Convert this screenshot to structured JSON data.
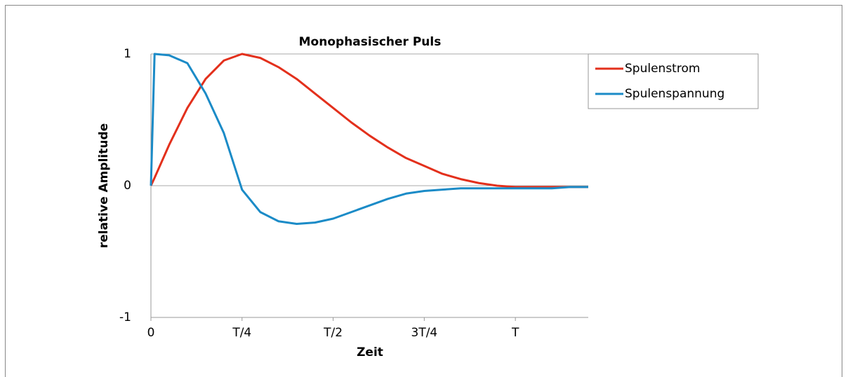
{
  "chart_data": {
    "type": "line",
    "title": "Monophasischer Puls",
    "xlabel": "Zeit",
    "ylabel": "relative Amplitude",
    "x": [
      0,
      0.01,
      0.05,
      0.1,
      0.15,
      0.2,
      0.25,
      0.3,
      0.35,
      0.4,
      0.45,
      0.5,
      0.55,
      0.6,
      0.65,
      0.7,
      0.75,
      0.8,
      0.85,
      0.9,
      0.95,
      1.0,
      1.05,
      1.1,
      1.15,
      1.2
    ],
    "series": [
      {
        "name": "Spulenstrom",
        "color": "#e3301c",
        "values": [
          0,
          0.06,
          0.31,
          0.59,
          0.81,
          0.95,
          1,
          0.97,
          0.9,
          0.81,
          0.7,
          0.59,
          0.48,
          0.38,
          0.29,
          0.21,
          0.15,
          0.09,
          0.05,
          0.02,
          0.0,
          -0.01,
          -0.01,
          -0.01,
          -0.01,
          -0.01
        ]
      },
      {
        "name": "Spulenspannung",
        "color": "#1b8bc7",
        "values": [
          0,
          1,
          0.99,
          0.93,
          0.7,
          0.4,
          -0.03,
          -0.2,
          -0.27,
          -0.29,
          -0.28,
          -0.25,
          -0.2,
          -0.15,
          -0.1,
          -0.06,
          -0.04,
          -0.03,
          -0.02,
          -0.02,
          -0.02,
          -0.02,
          -0.02,
          -0.02,
          -0.01,
          -0.01
        ]
      }
    ],
    "xlim": [
      0,
      1.2
    ],
    "xticks": [
      0,
      {
        "value": 0.25,
        "label": "T/4"
      },
      {
        "value": 0.5,
        "label": "T/2"
      },
      {
        "value": 0.75,
        "label": "3T/4"
      },
      {
        "value": 1,
        "label": "T"
      }
    ],
    "ylim": [
      -1,
      1
    ],
    "yticks": [
      -1,
      0,
      1
    ],
    "legend": "right"
  }
}
